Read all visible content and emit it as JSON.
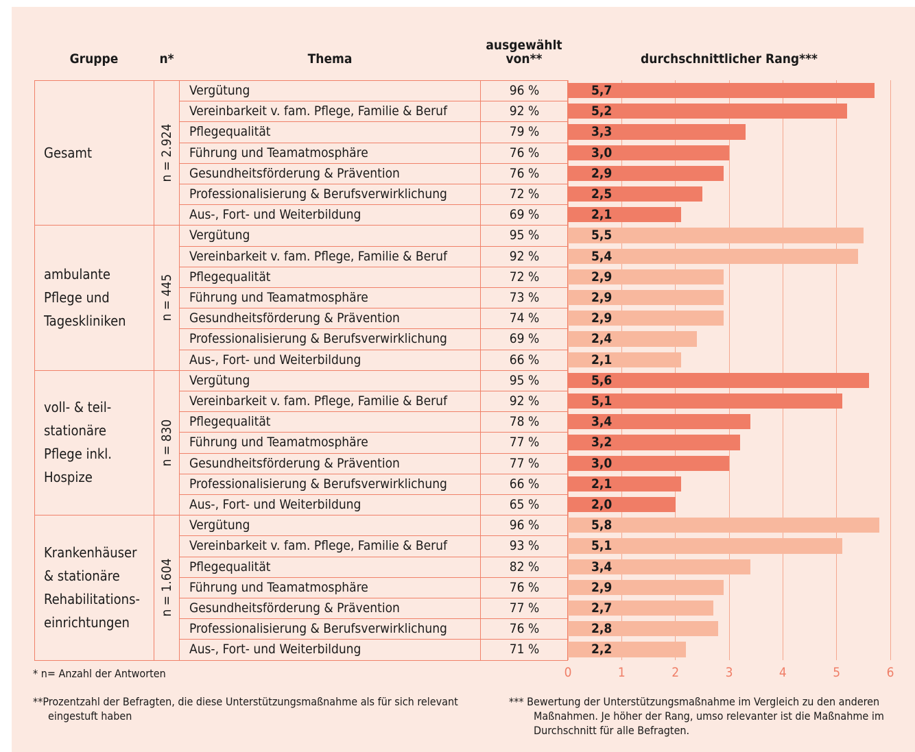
{
  "chart_data": {
    "type": "bar",
    "headers": [
      "Gruppe",
      "n*",
      "Thema",
      "ausgewählt von**",
      "durchschnittlicher Rang***"
    ],
    "xlim": [
      0,
      6
    ],
    "xticks": [
      0,
      1,
      2,
      3,
      4,
      5,
      6
    ],
    "grid": true,
    "groups": [
      {
        "name": "Gesamt",
        "n": "n = 2.924",
        "color": "#f07d66",
        "topics": [
          "Vergütung",
          "Vereinbarkeit v. fam. Pflege, Familie & Beruf",
          "Pflegequalität",
          "Führung und Teamatmosphäre",
          "Gesundheitsförderung & Prävention",
          "Professionalisierung & Berufsverwirklichung",
          "Aus-, Fort- und Weiterbildung"
        ],
        "selected": [
          "96 %",
          "92 %",
          "79 %",
          "76 %",
          "76 %",
          "72 %",
          "69 %"
        ],
        "values": [
          5.7,
          5.2,
          3.3,
          3.0,
          2.9,
          2.5,
          2.1
        ],
        "value_labels": [
          "5,7",
          "5,2",
          "3,3",
          "3,0",
          "2,9",
          "2,5",
          "2,1"
        ]
      },
      {
        "name": "ambulante Pflege und Tageskliniken",
        "n": "n = 445",
        "color": "#f8b89e",
        "topics": [
          "Vergütung",
          "Vereinbarkeit v. fam. Pflege, Familie & Beruf",
          "Pflegequalität",
          "Führung und Teamatmosphäre",
          "Gesundheitsförderung & Prävention",
          "Professionalisierung & Berufsverwirklichung",
          "Aus-, Fort- und Weiterbildung"
        ],
        "selected": [
          "95 %",
          "92 %",
          "72 %",
          "73 %",
          "74 %",
          "69 %",
          "66 %"
        ],
        "values": [
          5.5,
          5.4,
          2.9,
          2.9,
          2.9,
          2.4,
          2.1
        ],
        "value_labels": [
          "5,5",
          "5,4",
          "2,9",
          "2,9",
          "2,9",
          "2,4",
          "2,1"
        ]
      },
      {
        "name": "voll- & teil-stationäre Pflege inkl. Hospize",
        "n": "n = 830",
        "color": "#f07d66",
        "topics": [
          "Vergütung",
          "Vereinbarkeit v. fam. Pflege, Familie & Beruf",
          "Pflegequalität",
          "Führung und Teamatmosphäre",
          "Gesundheitsförderung & Prävention",
          "Professionalisierung & Berufsverwirklichung",
          "Aus-, Fort- und Weiterbildung"
        ],
        "selected": [
          "95 %",
          "92 %",
          "78 %",
          "77 %",
          "77 %",
          "66 %",
          "65 %"
        ],
        "values": [
          5.6,
          5.1,
          3.4,
          3.2,
          3.0,
          2.1,
          2.0
        ],
        "value_labels": [
          "5,6",
          "5,1",
          "3,4",
          "3,2",
          "3,0",
          "2,1",
          "2,0"
        ]
      },
      {
        "name": "Krankenhäuser & stationäre Rehabilitations-einrichtungen",
        "n": "n = 1.604",
        "color": "#f8b89e",
        "topics": [
          "Vergütung",
          "Vereinbarkeit v. fam. Pflege, Familie & Beruf",
          "Pflegequalität",
          "Führung und Teamatmosphäre",
          "Gesundheitsförderung & Prävention",
          "Professionalisierung & Berufsverwirklichung",
          "Aus-, Fort- und Weiterbildung"
        ],
        "selected": [
          "96 %",
          "93 %",
          "82 %",
          "76 %",
          "77 %",
          "76 %",
          "71 %"
        ],
        "values": [
          5.8,
          5.1,
          3.4,
          2.9,
          2.7,
          2.8,
          2.2
        ],
        "value_labels": [
          "5,8",
          "5,1",
          "3,4",
          "2,9",
          "2,7",
          "2,8",
          "2,2"
        ]
      }
    ],
    "footnotes": [
      "*  n= Anzahl der Antworten",
      "**Prozentzahl der Befragten, die diese Unterstützungsmaßnahme als für sich relevant eingestuft haben",
      "*** Bewertung der Unterstützungsmaßnahme im Vergleich zu den anderen Maßnahmen. Je höher der Rang, umso relevanter ist die Maßnahme im Durchschnitt für alle Befragten."
    ]
  }
}
